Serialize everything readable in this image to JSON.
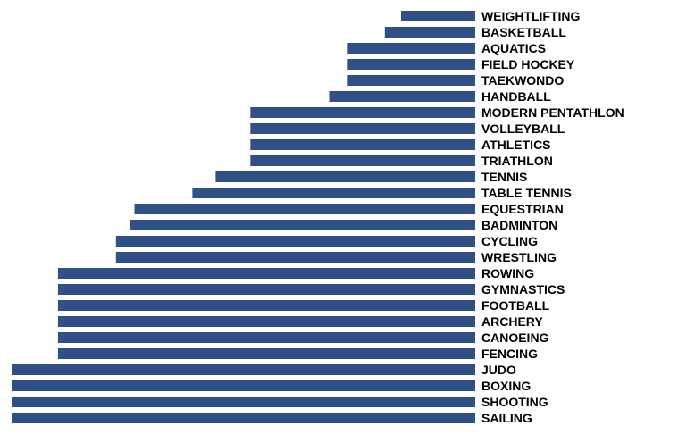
{
  "chart_data": {
    "type": "bar",
    "orientation": "horizontal",
    "bar_color": "#2f5186",
    "label_color": "#000000",
    "categories": [
      "WEIGHTLIFTING",
      "BASKETBALL",
      "AQUATICS",
      "FIELD HOCKEY",
      "TAEKWONDO",
      "HANDBALL",
      "MODERN PENTATHLON",
      "VOLLEYBALL",
      "ATHLETICS",
      "TRIATHLON",
      "TENNIS",
      "TABLE TENNIS",
      "EQUESTRIAN",
      "BADMINTON",
      "CYCLING",
      "WRESTLING",
      "ROWING",
      "GYMNASTICS",
      "FOOTBALL",
      "ARCHERY",
      "CANOEING",
      "FENCING",
      "JUDO",
      "BOXING",
      "SHOOTING",
      "SAILING"
    ],
    "values": [
      0.16,
      0.195,
      0.275,
      0.275,
      0.275,
      0.315,
      0.485,
      0.485,
      0.485,
      0.485,
      0.56,
      0.61,
      0.735,
      0.745,
      0.775,
      0.775,
      0.9,
      0.9,
      0.9,
      0.9,
      0.9,
      0.9,
      1.0,
      1.0,
      1.0,
      1.0
    ],
    "title": "",
    "xlabel": "",
    "ylabel": "",
    "xlim": [
      0,
      1
    ],
    "grid": false,
    "legend": "none",
    "axes_visible": false
  }
}
